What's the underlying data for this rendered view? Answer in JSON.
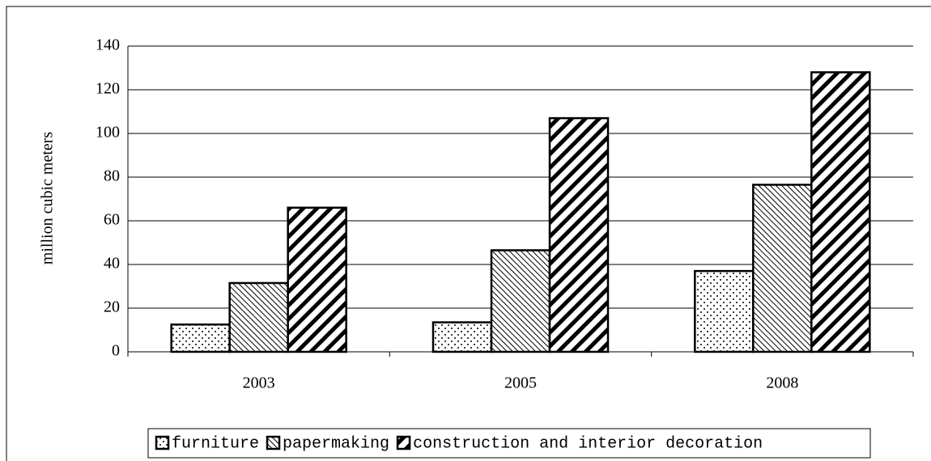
{
  "chart_data": {
    "type": "bar",
    "y_label": "million cubic meters",
    "categories": [
      "2003",
      "2005",
      "2008"
    ],
    "series": [
      {
        "name": "furniture",
        "pattern": "dots",
        "color": "#000000",
        "values": [
          12.5,
          13.5,
          37
        ]
      },
      {
        "name": "papermaking",
        "pattern": "thin-hatch",
        "color": "#000000",
        "values": [
          31.5,
          46.5,
          76.5
        ]
      },
      {
        "name": "construction and interior decoration",
        "pattern": "thick-hatch",
        "color": "#000000",
        "values": [
          66,
          107,
          128
        ]
      }
    ],
    "ylim": [
      0,
      140
    ],
    "yticks": [
      0,
      20,
      40,
      60,
      80,
      100,
      120,
      140
    ],
    "grid": true,
    "legend": "bottom"
  }
}
